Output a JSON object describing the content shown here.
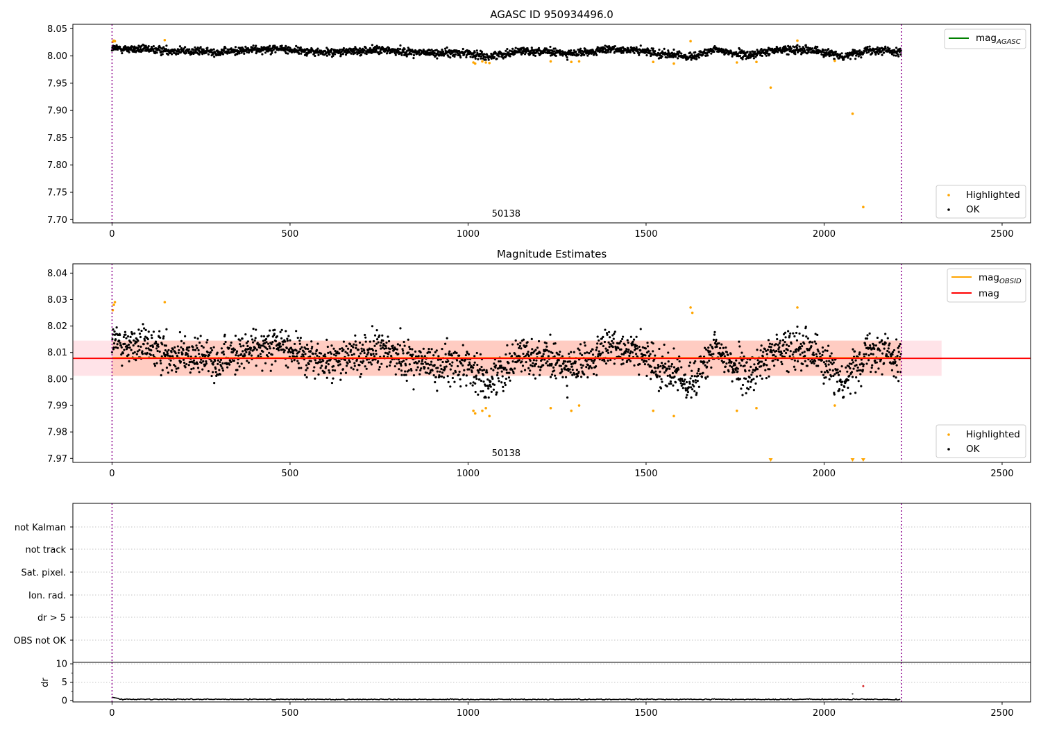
{
  "colors": {
    "ok": "#000000",
    "highlighted": "#ffa500",
    "mag_agasc": "#008000",
    "mag_obsid": "#ffa500",
    "mag": "#ff0000",
    "band_mag": "#ffc0cb",
    "band_obsid": "#ffa07a",
    "obs_boundary": "#8b008b",
    "dr_ok": "#000000",
    "dr_high": "#d62728"
  },
  "chart_data": [
    {
      "id": "agasc",
      "type": "scatter",
      "title": "AGASC ID 950934496.0",
      "xlim": [
        -110,
        2580
      ],
      "ylim": [
        7.694,
        8.058
      ],
      "xticks": [
        0,
        500,
        1000,
        1500,
        2000,
        2500
      ],
      "yticks": [
        "7.70",
        "7.75",
        "7.80",
        "7.85",
        "7.90",
        "7.95",
        "8.00",
        "8.05"
      ],
      "obs_boundaries": [
        0,
        2217
      ],
      "obsid_label": "50138",
      "obsid_label_x": 1107,
      "line_legend": [
        {
          "base": "mag",
          "sub": "AGASC",
          "color": "mag_agasc"
        }
      ],
      "point_legend": [
        {
          "label": "Highlighted",
          "color": "highlighted"
        },
        {
          "label": "OK",
          "color": "ok"
        }
      ],
      "series": [
        {
          "name": "OK",
          "n_points": 2217,
          "x_range": [
            0,
            2217
          ],
          "mean": 8.008,
          "sigma": 0.0045,
          "trend": [
            [
              0,
              8.014
            ],
            [
              300,
              8.007
            ],
            [
              450,
              8.014
            ],
            [
              600,
              8.006
            ],
            [
              750,
              8.011
            ],
            [
              900,
              8.005
            ],
            [
              1000,
              8.006
            ],
            [
              1050,
              7.998
            ],
            [
              1150,
              8.01
            ],
            [
              1300,
              8.004
            ],
            [
              1420,
              8.013
            ],
            [
              1550,
              8.004
            ],
            [
              1620,
              7.998
            ],
            [
              1700,
              8.011
            ],
            [
              1780,
              8.001
            ],
            [
              1870,
              8.011
            ],
            [
              1950,
              8.013
            ],
            [
              2050,
              7.999
            ],
            [
              2130,
              8.012
            ],
            [
              2217,
              8.008
            ]
          ]
        },
        {
          "name": "Highlighted",
          "points": [
            [
              2,
              8.026
            ],
            [
              5,
              8.028
            ],
            [
              8,
              8.027
            ],
            [
              148,
              8.029
            ],
            [
              1015,
              7.988
            ],
            [
              1020,
              7.986
            ],
            [
              1040,
              7.99
            ],
            [
              1050,
              7.988
            ],
            [
              1060,
              7.987
            ],
            [
              1232,
              7.99
            ],
            [
              1290,
              7.989
            ],
            [
              1312,
              7.99
            ],
            [
              1520,
              7.989
            ],
            [
              1578,
              7.986
            ],
            [
              1625,
              8.027
            ],
            [
              1755,
              7.988
            ],
            [
              1810,
              7.989
            ],
            [
              1850,
              7.942
            ],
            [
              1925,
              8.028
            ],
            [
              2030,
              7.991
            ],
            [
              2080,
              7.894
            ],
            [
              2110,
              7.723
            ]
          ]
        }
      ]
    },
    {
      "id": "estimates",
      "type": "scatter",
      "title": "Magnitude Estimates",
      "xlim": [
        -110,
        2580
      ],
      "ylim": [
        7.9685,
        8.0435
      ],
      "xticks": [
        0,
        500,
        1000,
        1500,
        2000,
        2500
      ],
      "yticks": [
        "7.97",
        "7.98",
        "7.99",
        "8.00",
        "8.01",
        "8.02",
        "8.03",
        "8.04"
      ],
      "obs_boundaries": [
        0,
        2217
      ],
      "obsid_label": "50138",
      "obsid_label_x": 1107,
      "mag": 8.0078,
      "mag_band": [
        8.0012,
        8.0145
      ],
      "mag_obsid": 8.008,
      "mag_obsid_band": [
        8.0012,
        8.0145
      ],
      "line_legend": [
        {
          "base": "mag",
          "sub": "OBSID",
          "color": "mag_obsid"
        },
        {
          "base": "mag",
          "sub": "",
          "color": "mag"
        }
      ],
      "point_legend": [
        {
          "label": "Highlighted",
          "color": "highlighted"
        },
        {
          "label": "OK",
          "color": "ok"
        }
      ],
      "series": [
        {
          "name": "OK",
          "same_as": "agasc.OK"
        },
        {
          "name": "Highlighted",
          "points": [
            [
              2,
              8.026
            ],
            [
              5,
              8.028
            ],
            [
              8,
              8.029
            ],
            [
              148,
              8.029
            ],
            [
              1015,
              7.988
            ],
            [
              1020,
              7.987
            ],
            [
              1040,
              7.988
            ],
            [
              1050,
              7.989
            ],
            [
              1060,
              7.986
            ],
            [
              1232,
              7.989
            ],
            [
              1290,
              7.988
            ],
            [
              1312,
              7.99
            ],
            [
              1520,
              7.988
            ],
            [
              1578,
              7.986
            ],
            [
              1625,
              8.027
            ],
            [
              1630,
              8.025
            ],
            [
              1755,
              7.988
            ],
            [
              1810,
              7.989
            ],
            [
              1925,
              8.027
            ],
            [
              2030,
              7.99
            ]
          ],
          "below_axis": [
            1850,
            2080,
            2110
          ]
        }
      ]
    },
    {
      "id": "flags",
      "type": "scatter",
      "xlim": [
        -110,
        2580
      ],
      "obs_boundaries": [
        0,
        2217
      ],
      "categories": [
        "not Kalman",
        "not track",
        "Sat. pixel.",
        "Ion. rad.",
        "dr > 5",
        "OBS not OK"
      ],
      "flagged_points": []
    },
    {
      "id": "dr",
      "type": "line",
      "ylabel": "dr",
      "xlim": [
        -110,
        2580
      ],
      "ylim": [
        -0.4,
        10.4
      ],
      "xticks": [
        0,
        500,
        1000,
        1500,
        2000,
        2500
      ],
      "yticks": [
        "0",
        "5",
        "10"
      ],
      "obs_boundaries": [
        0,
        2217
      ],
      "series": [
        {
          "name": "dr",
          "n_points": 2217,
          "typical": 0.3,
          "spread": 0.15,
          "start": 0.9
        },
        {
          "name": "outliers",
          "points": [
            [
              2080,
              1.8
            ],
            [
              2110,
              3.9
            ]
          ]
        }
      ]
    }
  ]
}
